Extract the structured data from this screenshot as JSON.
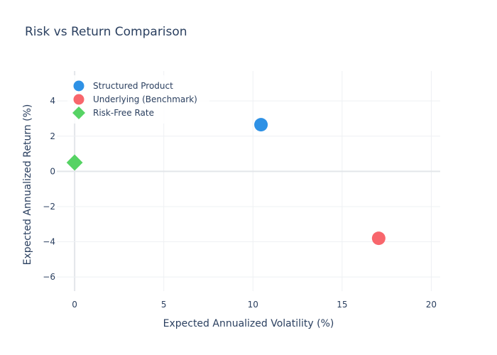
{
  "chart_data": {
    "type": "scatter",
    "title": "Risk vs Return Comparison",
    "xlabel": "Expected Annualized Volatility (%)",
    "ylabel": "Expected Annualized Return (%)",
    "xlim": [
      -1,
      20.5
    ],
    "ylim": [
      -6.8,
      5.7
    ],
    "x_ticks": [
      0,
      5,
      10,
      15,
      20
    ],
    "y_ticks": [
      -6,
      -4,
      -2,
      0,
      2,
      4
    ],
    "x_tick_labels": [
      "0",
      "5",
      "10",
      "15",
      "20"
    ],
    "y_tick_labels": [
      "−6",
      "−4",
      "−2",
      "0",
      "2",
      "4"
    ],
    "grid": true,
    "legend_position": "top-left",
    "series": [
      {
        "name": "Structured Product",
        "x": [
          10.45
        ],
        "y": [
          2.65
        ],
        "color": "#2e91e5",
        "marker": "circle"
      },
      {
        "name": "Underlying (Benchmark)",
        "x": [
          17.05
        ],
        "y": [
          -3.8
        ],
        "color": "#f8666c",
        "marker": "circle"
      },
      {
        "name": "Risk-Free Rate",
        "x": [
          0
        ],
        "y": [
          0.5
        ],
        "color": "#56d364",
        "marker": "diamond"
      }
    ]
  }
}
